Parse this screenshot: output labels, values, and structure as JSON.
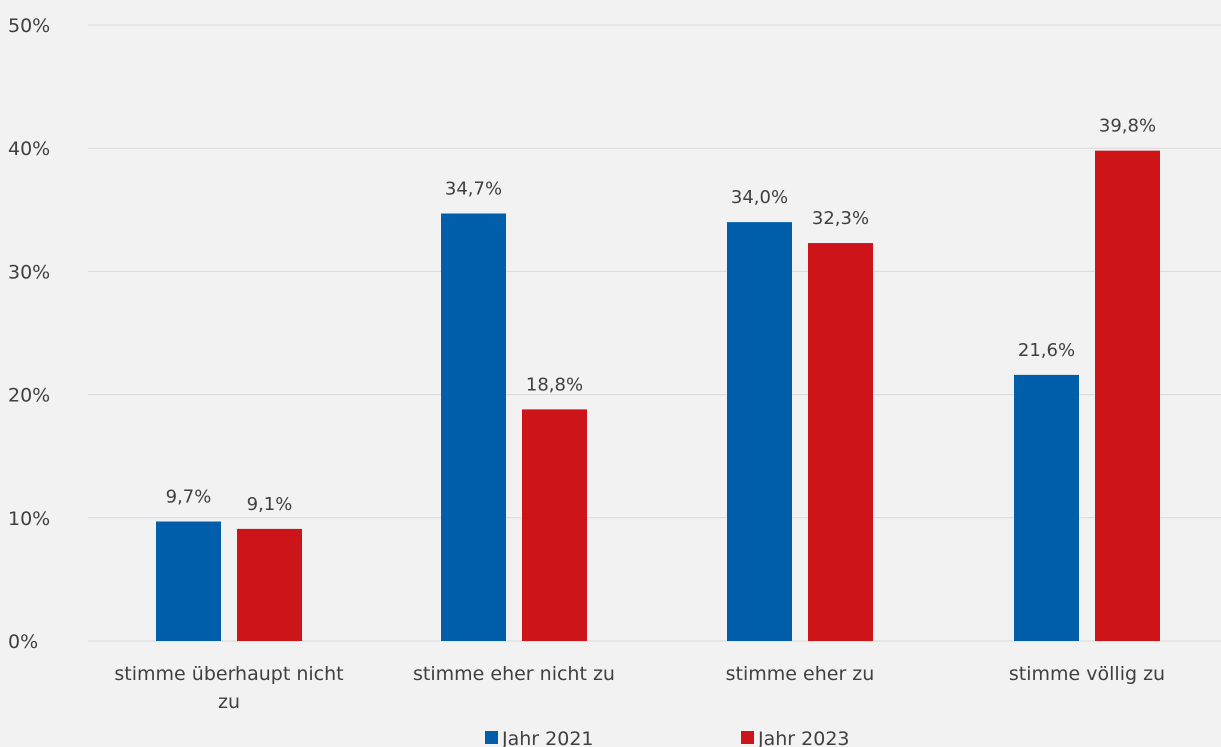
{
  "chart_data": {
    "type": "bar",
    "categories": [
      [
        "stimme überhaupt nicht",
        "zu"
      ],
      [
        "stimme eher nicht zu"
      ],
      [
        "stimme eher zu"
      ],
      [
        "stimme völlig zu"
      ]
    ],
    "series": [
      {
        "name": "Jahr 2021",
        "color": "#005eaa",
        "values": [
          9.7,
          34.7,
          34.0,
          21.6
        ],
        "labels": [
          "9,7%",
          "34,7%",
          "34,0%",
          "21,6%"
        ]
      },
      {
        "name": "Jahr 2023",
        "color": "#cc1419",
        "values": [
          9.1,
          18.8,
          32.3,
          39.8
        ],
        "labels": [
          "9,1%",
          "18,8%",
          "32,3%",
          "39,8%"
        ]
      }
    ],
    "yticks": [
      "0%",
      "10%",
      "20%",
      "30%",
      "40%",
      "50%"
    ],
    "ylim": [
      0,
      50
    ],
    "grid": true,
    "legend_position": "bottom"
  }
}
